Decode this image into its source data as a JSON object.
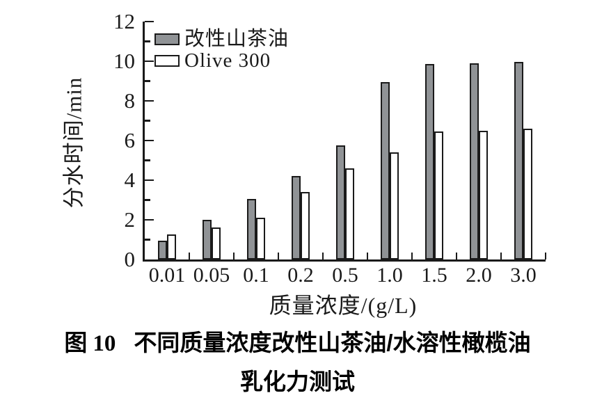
{
  "chart_data": {
    "type": "bar",
    "title": "图10 不同质量浓度改性山茶油/水溶性橄榄油乳化力测试",
    "categories": [
      "0.01",
      "0.05",
      "0.1",
      "0.2",
      "0.5",
      "1.0",
      "1.5",
      "2.0",
      "3.0"
    ],
    "series": [
      {
        "name": "改性山茶油",
        "color": "#909396",
        "values": [
          0.95,
          2.0,
          3.05,
          4.2,
          5.75,
          8.95,
          9.85,
          9.9,
          9.95
        ]
      },
      {
        "name": "Olive 300",
        "color": "#ffffff",
        "values": [
          1.25,
          1.6,
          2.1,
          3.4,
          4.6,
          5.4,
          6.45,
          6.5,
          6.6
        ]
      }
    ],
    "xlabel": "质量浓度/(g/L)",
    "ylabel": "分水时间/min",
    "ylim": [
      0,
      12
    ],
    "yticks": [
      0,
      2,
      4,
      6,
      8,
      10,
      12
    ],
    "minor_yticks": [
      1,
      3,
      5,
      7,
      9,
      11
    ],
    "bar_outline_color": "#1a1a1a",
    "legend_position": "top-left",
    "grid": false
  },
  "caption": {
    "fig_prefix": "图",
    "fig_num": "10",
    "line1": "不同质量浓度改性山茶油/水溶性橄榄油",
    "line2": "乳化力测试"
  }
}
